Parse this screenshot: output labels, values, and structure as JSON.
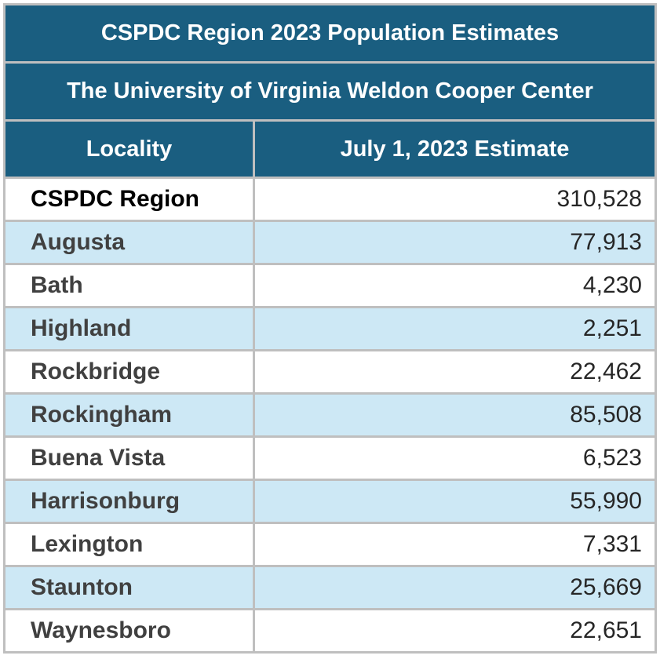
{
  "table": {
    "title": "CSPDC Region 2023 Population Estimates",
    "subtitle": "The University of Virginia Weldon Cooper Center",
    "columns": [
      "Locality",
      "July 1, 2023 Estimate"
    ],
    "rows": [
      {
        "locality": "CSPDC Region",
        "estimate": "310,528"
      },
      {
        "locality": "Augusta",
        "estimate": "77,913"
      },
      {
        "locality": "Bath",
        "estimate": "4,230"
      },
      {
        "locality": "Highland",
        "estimate": "2,251"
      },
      {
        "locality": "Rockbridge",
        "estimate": "22,462"
      },
      {
        "locality": "Rockingham",
        "estimate": "85,508"
      },
      {
        "locality": "Buena Vista",
        "estimate": "6,523"
      },
      {
        "locality": "Harrisonburg",
        "estimate": "55,990"
      },
      {
        "locality": "Lexington",
        "estimate": "7,331"
      },
      {
        "locality": "Staunton",
        "estimate": "25,669"
      },
      {
        "locality": "Waynesboro",
        "estimate": "22,651"
      }
    ]
  },
  "colors": {
    "header": "#1a5e80",
    "alt_row": "#cde8f5",
    "border": "#bfbfbf"
  }
}
